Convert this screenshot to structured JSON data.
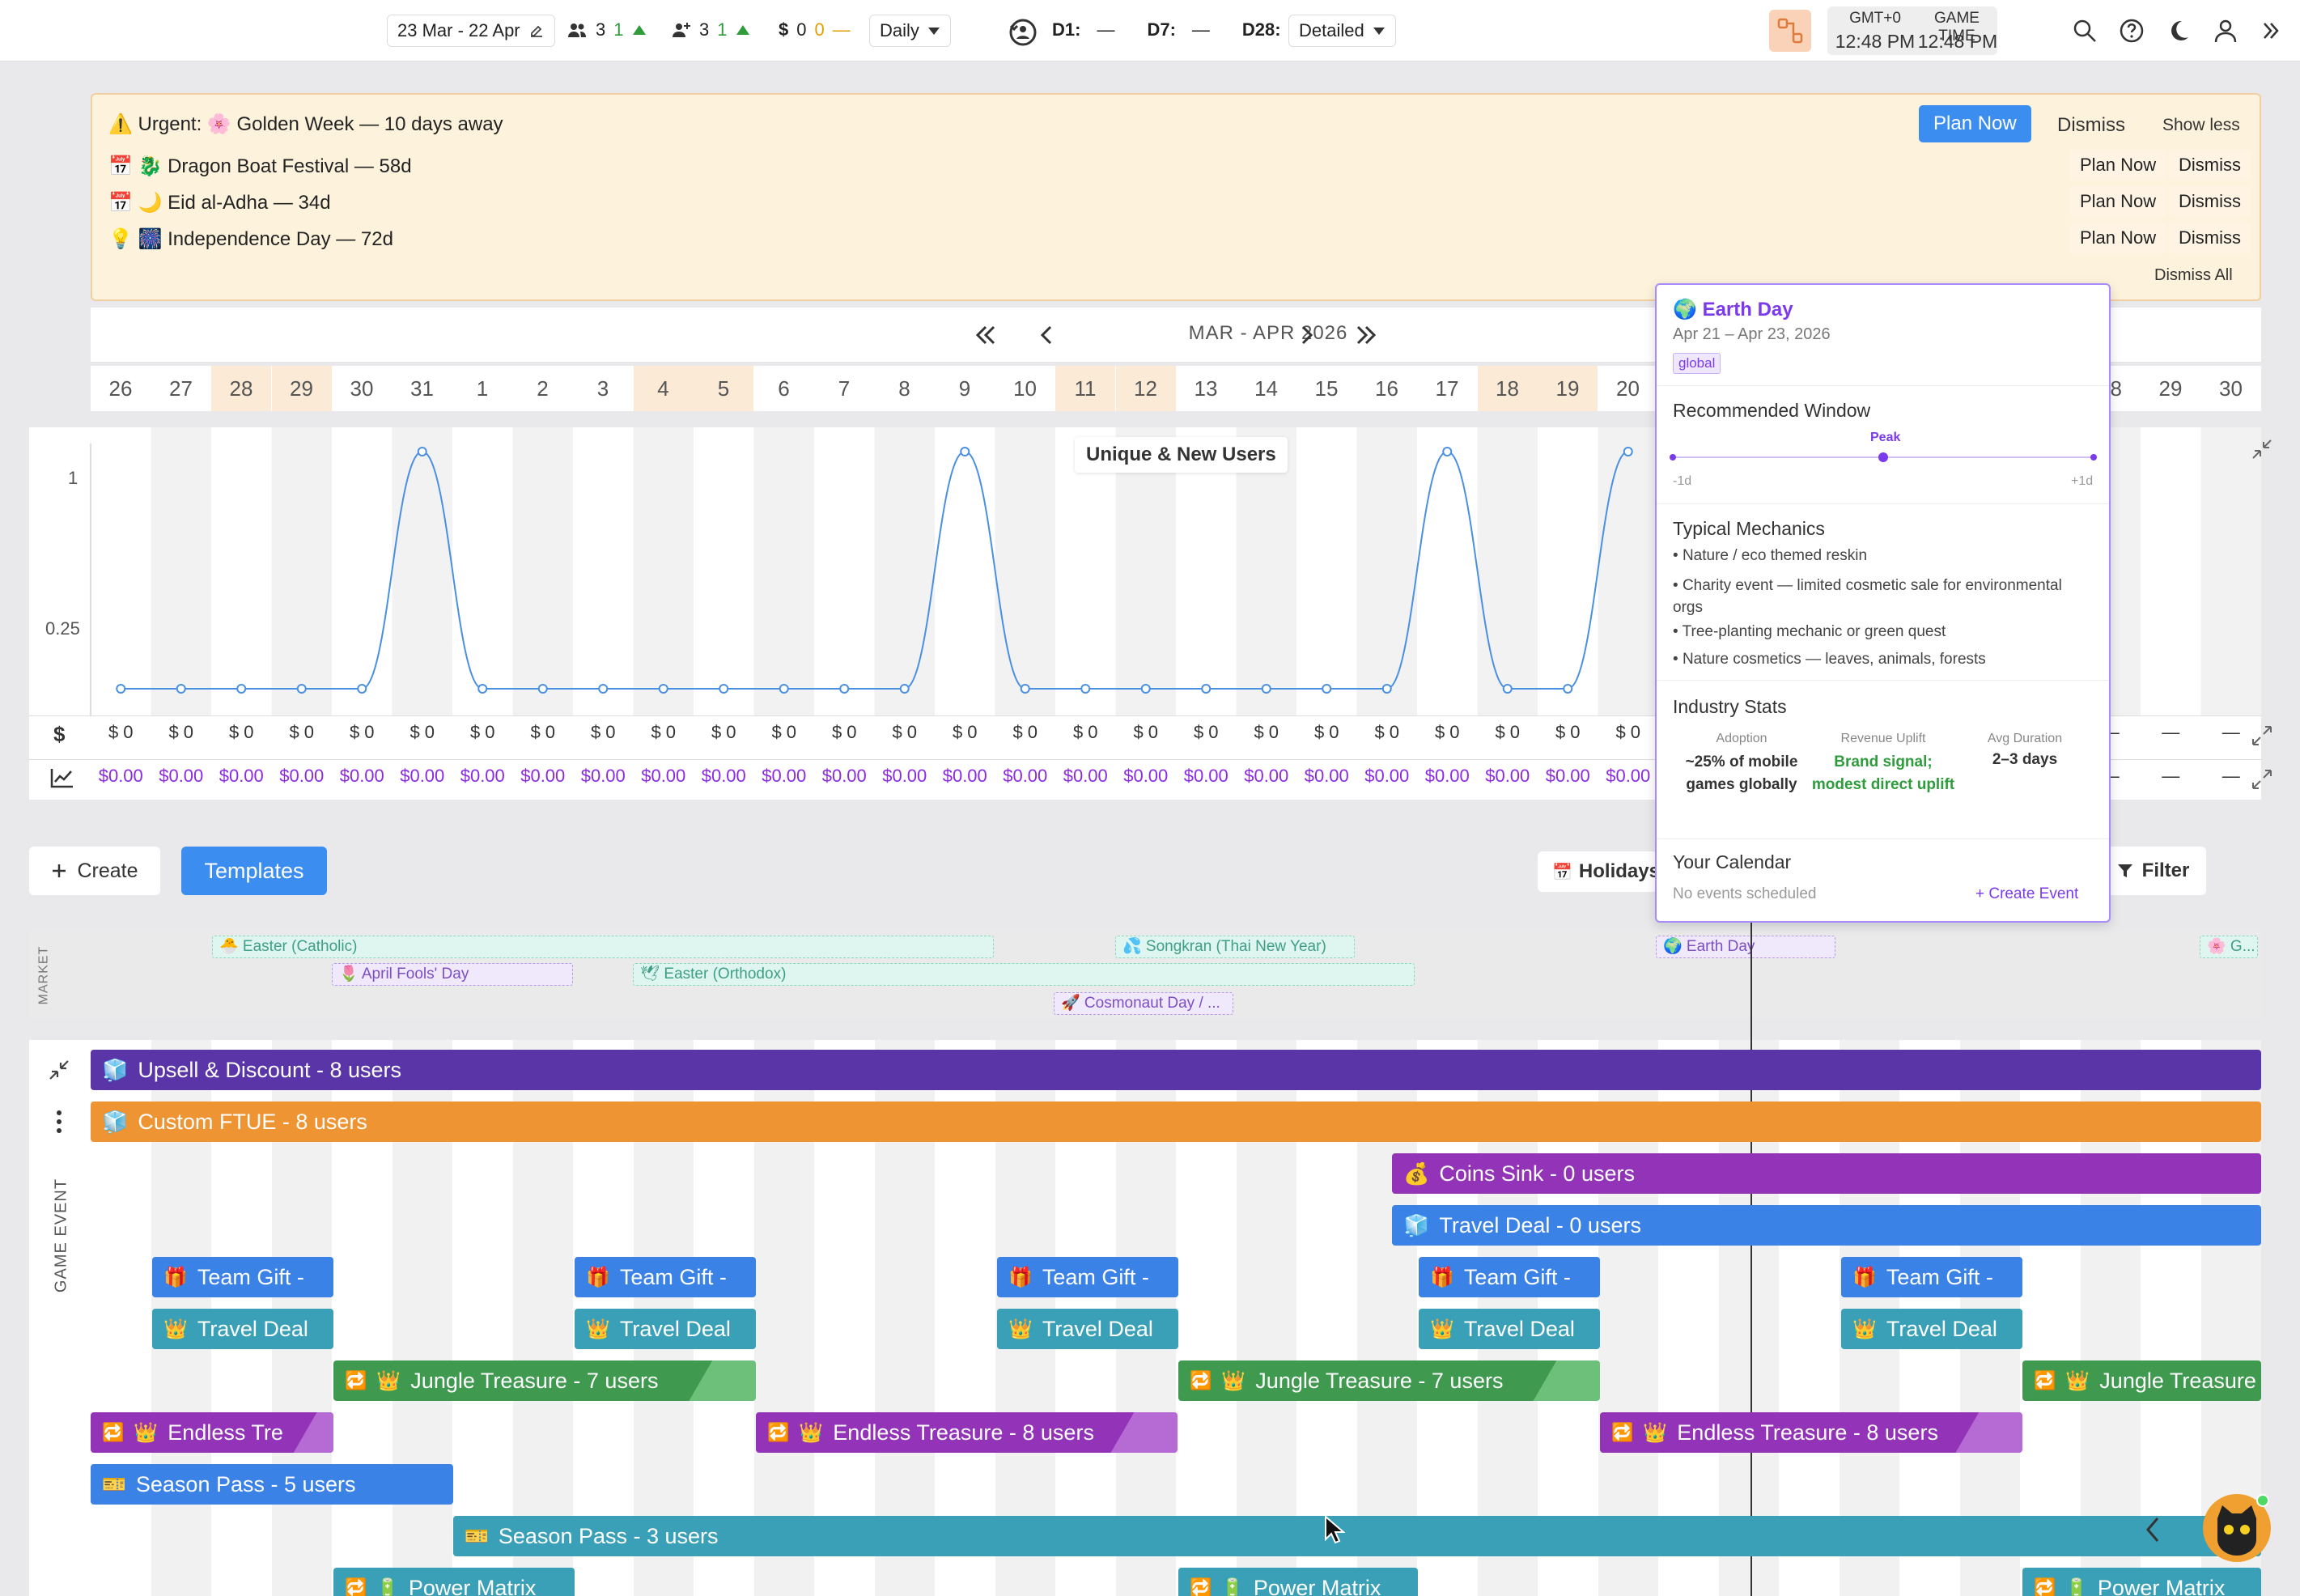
{
  "topbar": {
    "date_range": "23 Mar - 22 Apr",
    "users_stat": {
      "value": "3",
      "delta": "1"
    },
    "new_users_stat": {
      "value": "3",
      "delta": "1"
    },
    "revenue_stat": {
      "symbol": "$",
      "value": "0",
      "delta": "0",
      "dash": "—"
    },
    "granularity": "Daily",
    "retention": [
      {
        "label": "D1:",
        "value": "—"
      },
      {
        "label": "D7:",
        "value": "—"
      },
      {
        "label": "D28:",
        "value": "—"
      }
    ],
    "detail_mode": "Detailed",
    "tz_label": "GMT+0",
    "tz_time": "12:48 PM",
    "game_time_label": "GAME TIME",
    "game_time": "12:48 PM"
  },
  "alerts": {
    "urgent": "⚠️ Urgent: 🌸 Golden Week — 10 days away",
    "plan_now": "Plan Now",
    "dismiss": "Dismiss",
    "show_less": "Show less",
    "items": [
      {
        "text": "📅 🐉 Dragon Boat Festival — 58d",
        "plan": "Plan Now",
        "dismiss": "Dismiss"
      },
      {
        "text": "📅 🌙 Eid al-Adha — 34d",
        "plan": "Plan Now",
        "dismiss": "Dismiss"
      },
      {
        "text": "💡 🎆 Independence Day — 72d",
        "plan": "Plan Now",
        "dismiss": "Dismiss"
      }
    ],
    "dismiss_all": "Dismiss All"
  },
  "calendar": {
    "month_label": "MAR - APR 2026",
    "days": [
      "26",
      "27",
      "28",
      "29",
      "30",
      "31",
      "1",
      "2",
      "3",
      "4",
      "5",
      "6",
      "7",
      "8",
      "9",
      "10",
      "11",
      "12",
      "13",
      "14",
      "15",
      "16",
      "17",
      "18",
      "19",
      "20",
      "21",
      "22",
      "23",
      "24",
      "25",
      "26",
      "27",
      "28",
      "29",
      "30"
    ],
    "weekend_index": [
      2,
      3,
      9,
      10,
      16,
      17,
      23,
      24,
      30,
      31
    ]
  },
  "chart": {
    "title": "Unique & New Users",
    "y_ticks": [
      "1",
      "0.25"
    ],
    "money_cells": "$ 0",
    "revenue_cells": "$0.00",
    "dash": "—"
  },
  "chart_data": {
    "type": "line",
    "title": "Unique & New Users",
    "x": [
      "26",
      "27",
      "28",
      "29",
      "30",
      "31",
      "1",
      "2",
      "3",
      "4",
      "5",
      "6",
      "7",
      "8",
      "9",
      "10",
      "11",
      "12",
      "13",
      "14",
      "15",
      "16",
      "17",
      "18",
      "19",
      "20"
    ],
    "series": [
      {
        "values": [
          0,
          0,
          0,
          0,
          0,
          1,
          0,
          0,
          0,
          0,
          0,
          0,
          0,
          0,
          1,
          0,
          0,
          0,
          0,
          0,
          0,
          0,
          1,
          0,
          0,
          1
        ]
      }
    ],
    "y_ticks": [
      "1",
      "0.25"
    ]
  },
  "toolbar": {
    "create": "Create",
    "templates": "Templates",
    "holidays": "Holidays",
    "filter": "Filter"
  },
  "market": {
    "label": "MARKET",
    "events": [
      {
        "text": "🐣 Easter (Catholic)",
        "color": "teal"
      },
      {
        "text": "🌷 April Fools' Day",
        "color": "purple"
      },
      {
        "text": "🕊 Easter (Orthodox)",
        "color": "teal"
      },
      {
        "text": "💦 Songkran (Thai New Year)",
        "color": "teal"
      },
      {
        "text": "🚀 Cosmonaut Day / ...",
        "color": "purple"
      },
      {
        "text": "🌍 Earth Day",
        "color": "purple"
      },
      {
        "text": "🌸 G...",
        "color": "teal"
      }
    ]
  },
  "game_events": {
    "label": "GAME EVENT",
    "rows": [
      {
        "text": "Upsell & Discount - 8 users"
      },
      {
        "text": "Custom FTUE - 8 users"
      },
      {
        "text": "Coins Sink - 0 users"
      },
      {
        "text": "Travel Deal - 0 users"
      },
      {
        "text": "Team Gift -"
      },
      {
        "text": "Travel Deal"
      },
      {
        "text": "Jungle Treasure - 7 users"
      },
      {
        "text": "Jungle Treasure"
      },
      {
        "text": "Endless Tre"
      },
      {
        "text": "Endless Treasure - 8 users"
      },
      {
        "text": "Season Pass - 5 users"
      },
      {
        "text": "Season Pass - 3 users"
      },
      {
        "text": "Power Matrix"
      }
    ]
  },
  "popover": {
    "title": "Earth Day",
    "dates": "Apr 21 – Apr 23, 2026",
    "tag": "global",
    "rec_window": "Recommended Window",
    "peak": "Peak",
    "minus": "-1d",
    "plus": "+1d",
    "mechanics_title": "Typical Mechanics",
    "mechanics": [
      "Nature / eco themed reskin",
      "Charity event — limited cosmetic sale for environmental orgs",
      "Tree-planting mechanic or green quest",
      "Nature cosmetics — leaves, animals, forests"
    ],
    "stats_title": "Industry Stats",
    "stats": [
      {
        "label": "Adoption",
        "value": "~25% of mobile games globally"
      },
      {
        "label": "Revenue Uplift",
        "value": "Brand signal; modest direct uplift"
      },
      {
        "label": "Avg Duration",
        "value": "2–3 days"
      }
    ],
    "calendar_title": "Your Calendar",
    "no_events": "No events scheduled",
    "create_event": "+ Create Event"
  }
}
